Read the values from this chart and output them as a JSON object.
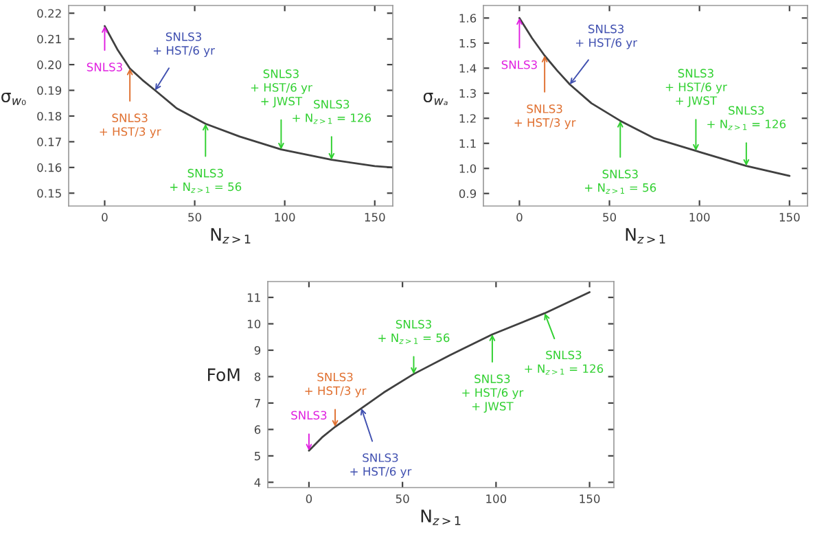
{
  "chart_data": [
    {
      "type": "line",
      "xlabel": "N$_{z>1}$",
      "ylabel": "σ$_{w₀}$",
      "x": [
        0,
        7,
        14,
        21,
        28,
        40,
        56,
        75,
        98,
        126,
        150,
        160
      ],
      "series": [
        {
          "color": "#404040",
          "values": [
            0.215,
            0.206,
            0.1985,
            0.194,
            0.19,
            0.183,
            0.177,
            0.172,
            0.167,
            0.163,
            0.1605,
            0.16
          ]
        }
      ],
      "xlim": [
        -20,
        160
      ],
      "ylim": [
        0.145,
        0.223
      ],
      "xticks": [
        0,
        50,
        100,
        150
      ],
      "yticks": [
        0.15,
        0.16,
        0.17,
        0.18,
        0.19,
        {
          "value": 0.2,
          "label": "0.20"
        },
        0.21,
        0.22
      ],
      "annotations": [
        {
          "text": "SNLS3",
          "x": 0,
          "y": 0.215
        },
        {
          "text": "SNLS3\n+ HST/3 yr",
          "x": 14,
          "y": 0.1985
        },
        {
          "text": "SNLS3\n+ HST/6 yr",
          "x": 28,
          "y": 0.19
        },
        {
          "text": "SNLS3\n+ N$_{z>1}$ = 56",
          "x": 56,
          "y": 0.177
        },
        {
          "text": "SNLS3\n+ HST/6 yr\n+ JWST",
          "x": 98,
          "y": 0.167
        },
        {
          "text": "SNLS3\n+ N$_{z>1}$ = 126",
          "x": 126,
          "y": 0.163
        }
      ]
    },
    {
      "type": "line",
      "xlabel": "N$_{z>1}$",
      "ylabel": "σ$_{wₐ}$",
      "x": [
        0,
        7,
        14,
        21,
        28,
        40,
        56,
        75,
        98,
        126,
        150
      ],
      "series": [
        {
          "color": "#404040",
          "values": [
            1.6,
            1.52,
            1.45,
            1.39,
            1.335,
            1.26,
            1.19,
            1.12,
            1.07,
            1.01,
            0.97
          ]
        }
      ],
      "xlim": [
        -20,
        160
      ],
      "ylim": [
        0.85,
        1.65
      ],
      "xticks": [
        0,
        50,
        100,
        150
      ],
      "yticks": [
        0.9,
        {
          "value": 1.0,
          "label": "1.0"
        },
        1.1,
        1.2,
        1.3,
        1.4,
        1.5,
        1.6
      ],
      "annotations": [
        {
          "text": "SNLS3",
          "x": 0,
          "y": 1.6
        },
        {
          "text": "SNLS3\n+ HST/3 yr",
          "x": 14,
          "y": 1.45
        },
        {
          "text": "SNLS3\n+ HST/6 yr",
          "x": 28,
          "y": 1.335
        },
        {
          "text": "SNLS3\n+ N$_{z>1}$ = 56",
          "x": 56,
          "y": 1.19
        },
        {
          "text": "SNLS3\n+ HST/6 yr\n+ JWST",
          "x": 98,
          "y": 1.07
        },
        {
          "text": "SNLS3\n+ N$_{z>1}$ = 126",
          "x": 126,
          "y": 1.01
        }
      ]
    },
    {
      "type": "line",
      "xlabel": "N$_{z>1}$",
      "ylabel": "FoM",
      "x": [
        0,
        7,
        14,
        21,
        28,
        40,
        56,
        75,
        98,
        126,
        150
      ],
      "series": [
        {
          "color": "#404040",
          "values": [
            5.2,
            5.7,
            6.1,
            6.45,
            6.8,
            7.4,
            8.1,
            8.8,
            9.6,
            10.4,
            11.2
          ]
        }
      ],
      "xlim": [
        -22,
        163
      ],
      "ylim": [
        3.8,
        11.6
      ],
      "xticks": [
        0,
        50,
        100,
        150
      ],
      "yticks": [
        4,
        5,
        6,
        7,
        8,
        9,
        10,
        11
      ],
      "annotations": [
        {
          "text": "SNLS3",
          "x": 0,
          "y": 5.2
        },
        {
          "text": "SNLS3\n+ HST/3 yr",
          "x": 14,
          "y": 6.1
        },
        {
          "text": "SNLS3\n+ HST/6 yr",
          "x": 28,
          "y": 6.8
        },
        {
          "text": "SNLS3\n+ N$_{z>1}$ = 56",
          "x": 56,
          "y": 8.1
        },
        {
          "text": "SNLS3\n+ HST/6 yr\n+ JWST",
          "x": 98,
          "y": 9.6
        },
        {
          "text": "SNLS3\n+ N$_{z>1}$ = 126",
          "x": 126,
          "y": 10.4
        }
      ]
    }
  ]
}
